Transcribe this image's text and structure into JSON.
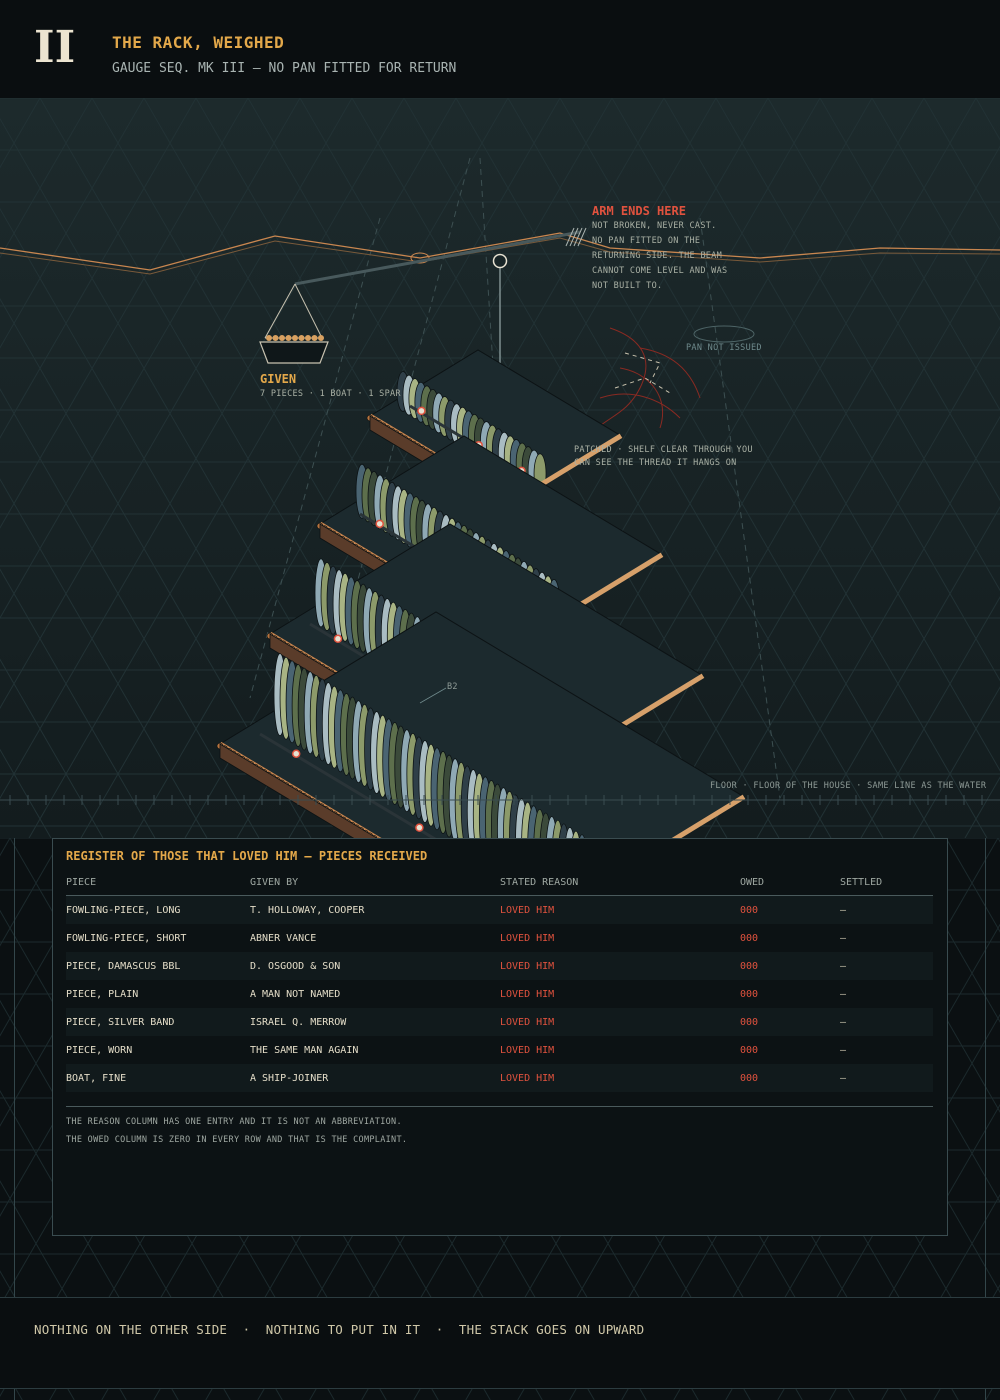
{
  "header": {
    "numeral": "II",
    "title": "THE RACK, WEIGHED",
    "subtitle": "GAUGE SEQ. MK III — NO PAN FITTED FOR RETURN"
  },
  "scene": {
    "arm_title": "ARM ENDS HERE",
    "arm_note": "NOT BROKEN, NEVER CAST. NO PAN FITTED ON THE RETURNING SIDE. THE BEAM CANNOT COME LEVEL AND WAS NOT BUILT TO.",
    "given_label": "GIVEN",
    "given_count": "7 PIECES · 1 BOAT · 1 SPAR",
    "pan_label": "PAN NOT ISSUED",
    "patch_note": "PATCHED · SHELF CLEAR THROUGH YOU CAN SEE THE THREAD IT HANGS ON",
    "floor_note": "FLOOR · FLOOR OF THE HOUSE · SAME LINE AS THE WATER",
    "b2_label": "B2",
    "colors": {
      "accent": "#e3a84a",
      "alert": "#e0523e",
      "shelf_blue": "#8fa9b4",
      "shelf_green": "#8c9a6a",
      "shelf_copper": "#c9864f"
    }
  },
  "register": {
    "title": "REGISTER OF THOSE THAT LOVED HIM — PIECES RECEIVED",
    "columns": [
      "PIECE",
      "GIVEN BY",
      "STATED REASON",
      "OWED",
      "SETTLED"
    ],
    "rows": [
      [
        "FOWLING-PIECE, LONG",
        "T. HOLLOWAY, COOPER",
        "LOVED HIM",
        "000",
        "—"
      ],
      [
        "FOWLING-PIECE, SHORT",
        "ABNER VANCE",
        "LOVED HIM",
        "000",
        "—"
      ],
      [
        "PIECE, DAMASCUS BBL",
        "D. OSGOOD & SON",
        "LOVED HIM",
        "000",
        "—"
      ],
      [
        "PIECE, PLAIN",
        "A MAN NOT NAMED",
        "LOVED HIM",
        "000",
        "—"
      ],
      [
        "PIECE, SILVER BAND",
        "ISRAEL Q. MERROW",
        "LOVED HIM",
        "000",
        "—"
      ],
      [
        "PIECE, WORN",
        "THE SAME MAN AGAIN",
        "LOVED HIM",
        "000",
        "—"
      ],
      [
        "BOAT, FINE",
        "A SHIP-JOINER",
        "LOVED HIM",
        "000",
        "—"
      ]
    ],
    "note1": "THE REASON COLUMN HAS ONE ENTRY AND IT IS NOT AN ABBREVIATION.",
    "note2": "THE OWED COLUMN IS ZERO IN EVERY ROW AND THAT IS THE COMPLAINT."
  },
  "footer": {
    "text": "NOTHING ON THE OTHER SIDE  ·  NOTHING TO PUT IN IT  ·  THE STACK GOES ON UPWARD"
  }
}
